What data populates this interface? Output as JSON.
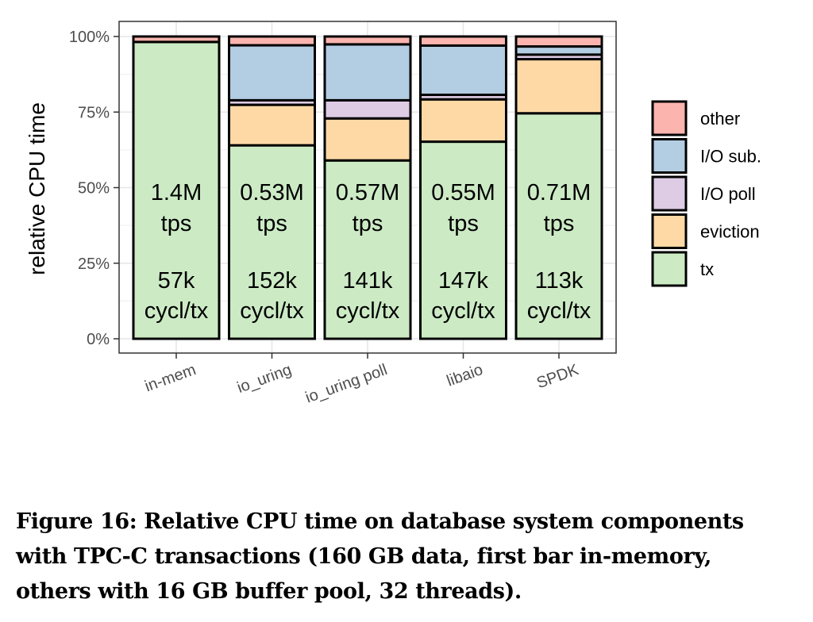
{
  "chart_data": {
    "type": "bar",
    "stacked": true,
    "ylabel": "relative CPU time",
    "xlabel": "",
    "ylim": [
      0,
      100
    ],
    "yticks": [
      "0%",
      "25%",
      "50%",
      "75%",
      "100%"
    ],
    "categories": [
      "in-mem",
      "io_uring",
      "io_uring poll",
      "libaio",
      "SPDK"
    ],
    "series": [
      {
        "name": "tx",
        "color": "#ccebc5",
        "values": [
          98.2,
          64.0,
          59.0,
          65.2,
          74.6
        ]
      },
      {
        "name": "eviction",
        "color": "#fed9a6",
        "values": [
          0,
          13.4,
          13.9,
          14.0,
          17.9
        ]
      },
      {
        "name": "I/O poll",
        "color": "#decbe4",
        "values": [
          0,
          1.5,
          6.0,
          1.5,
          1.5
        ]
      },
      {
        "name": "I/O sub.",
        "color": "#b3cde3",
        "values": [
          0,
          18.2,
          18.5,
          16.3,
          2.7
        ]
      },
      {
        "name": "other",
        "color": "#fbb4ae",
        "values": [
          1.8,
          2.9,
          2.6,
          3.0,
          3.3
        ]
      }
    ],
    "legend_order": [
      "other",
      "I/O sub.",
      "I/O poll",
      "eviction",
      "tx"
    ],
    "legend_position": "right",
    "grid": true,
    "bar_labels": [
      {
        "tps": "1.4M",
        "tps_unit": "tps",
        "cycles": "57k",
        "cycles_unit": "cycl/tx"
      },
      {
        "tps": "0.53M",
        "tps_unit": "tps",
        "cycles": "152k",
        "cycles_unit": "cycl/tx"
      },
      {
        "tps": "0.57M",
        "tps_unit": "tps",
        "cycles": "141k",
        "cycles_unit": "cycl/tx"
      },
      {
        "tps": "0.55M",
        "tps_unit": "tps",
        "cycles": "147k",
        "cycles_unit": "cycl/tx"
      },
      {
        "tps": "0.71M",
        "tps_unit": "tps",
        "cycles": "113k",
        "cycles_unit": "cycl/tx"
      }
    ]
  },
  "caption": {
    "line1": "Figure 16: Relative CPU time on database system components",
    "line2": "with TPC-C transactions (160 GB data, first bar in-memory,",
    "line3": "others with 16 GB buffer pool, 32 threads)."
  }
}
